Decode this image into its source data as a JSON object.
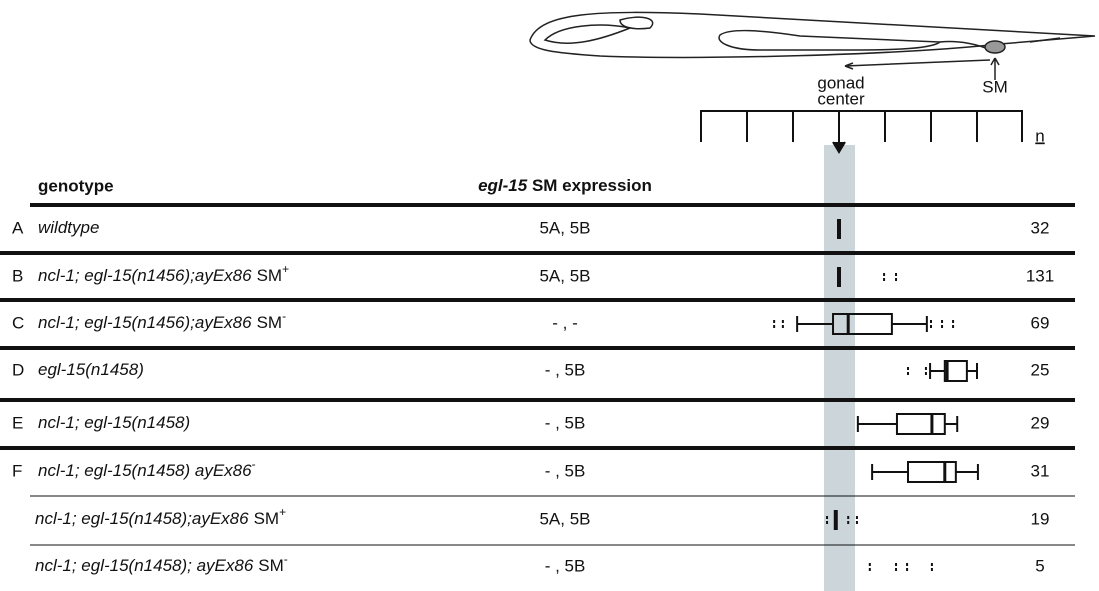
{
  "figure": {
    "labels": {
      "gonad": "gonad",
      "center": "center",
      "sm": "SM",
      "n": "n"
    },
    "header": {
      "genotype": "genotype",
      "expression_gene": "egl-15",
      "expression_rest": "SM expression"
    },
    "rows": [
      {
        "letter": "A",
        "genotype": "wildtype",
        "expression": "5A, 5B",
        "n": "32",
        "plot": {
          "median": 0
        }
      },
      {
        "letter": "B",
        "genotype": "ncl-1; egl-15(n1456);ayEx86",
        "suffix": "SM",
        "sup": "+",
        "expression": "5A, 5B",
        "n": "131",
        "plot": {
          "median": 0,
          "outliers": [
            0.98,
            1.24
          ]
        }
      },
      {
        "letter": "C",
        "genotype": "ncl-1; egl-15(n1456);ayEx86",
        "suffix": "SM",
        "sup": "-",
        "expression": "- , -",
        "n": "69",
        "plot": {
          "whisker_low": -0.91,
          "q1": -0.13,
          "median": 0.2,
          "q3": 1.15,
          "whisker_high": 1.91,
          "outliers": [
            -1.41,
            -1.22,
            2.0,
            2.24,
            2.48
          ]
        }
      },
      {
        "letter": "D",
        "genotype": "egl-15(n1458)",
        "expression": "- , 5B",
        "n": "25",
        "plot": {
          "whisker_low": 1.98,
          "q1": 2.3,
          "median": 2.35,
          "q3": 2.78,
          "whisker_high": 3.0,
          "outliers": [
            1.5,
            1.89
          ]
        }
      },
      {
        "letter": "E",
        "genotype": "ncl-1; egl-15(n1458)",
        "expression": "- , 5B",
        "n": "29",
        "plot": {
          "whisker_low": 0.41,
          "q1": 1.26,
          "median": 2.02,
          "q3": 2.3,
          "whisker_high": 2.57
        }
      },
      {
        "letter": "F",
        "genotype": "ncl-1; egl-15(n1458) ayEx86",
        "sup": "-",
        "expression": "- , 5B",
        "n": "31",
        "plot": {
          "whisker_low": 0.72,
          "q1": 1.5,
          "median": 2.3,
          "q3": 2.54,
          "whisker_high": 3.02
        }
      },
      {
        "genotype": "ncl-1; egl-15(n1458);ayEx86",
        "suffix": "SM",
        "sup": "+",
        "expression": "5A, 5B",
        "n": "19",
        "plot": {
          "median": -0.07,
          "outliers": [
            -0.26,
            0.2,
            0.39
          ]
        }
      },
      {
        "genotype": "ncl-1; egl-15(n1458); ayEx86",
        "suffix": "SM",
        "sup": "-",
        "expression": "- , 5B",
        "n": "5",
        "plot": {
          "outliers": [
            0.67,
            1.24,
            1.48,
            2.02
          ]
        }
      }
    ]
  }
}
